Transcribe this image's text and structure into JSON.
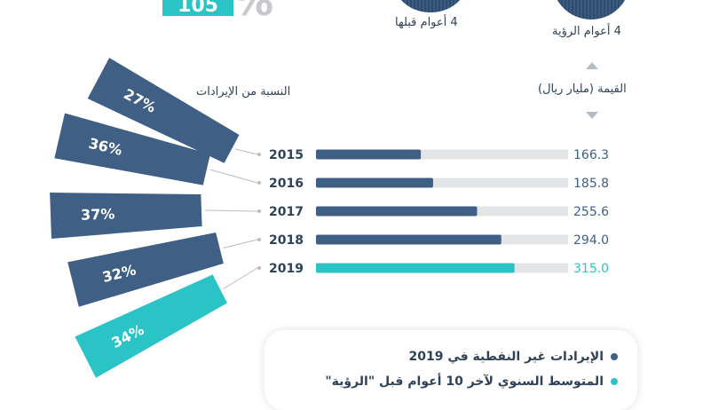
{
  "top": {
    "pill_text": "105",
    "pct_sign": "%",
    "caption_left": "4 أعوام قبلها",
    "caption_right": "4 أعوام الرؤية"
  },
  "headers": {
    "share": "النسبة من الإيرادات",
    "value": "القيمة (مليار ريال)"
  },
  "colors": {
    "dark": "#3f5f85",
    "teal": "#2bc4c6",
    "track": "#e3e4e6"
  },
  "chart_data": {
    "type": "bar",
    "categories": [
      "2015",
      "2016",
      "2017",
      "2018",
      "2019"
    ],
    "values": [
      166.3,
      185.8,
      255.6,
      294.0,
      315.0
    ],
    "value_labels": [
      "166.3",
      "185.8",
      "255.6",
      "294.0",
      "315.0"
    ],
    "share_labels": [
      "27%",
      "36%",
      "37%",
      "32%",
      "34%"
    ],
    "share_values": [
      27,
      36,
      37,
      32,
      34
    ],
    "highlight": "2019",
    "ylabel": "القيمة (مليار ريال)",
    "xlim": [
      0,
      400
    ]
  },
  "legend": [
    {
      "text": "الإيرادات غير النفطية في 2019",
      "color": "#3f5f85"
    },
    {
      "text": "المتوسط السنوي لآخر 10 أعوام قبل \"الرؤية\"",
      "color": "#2bc4c6"
    }
  ]
}
